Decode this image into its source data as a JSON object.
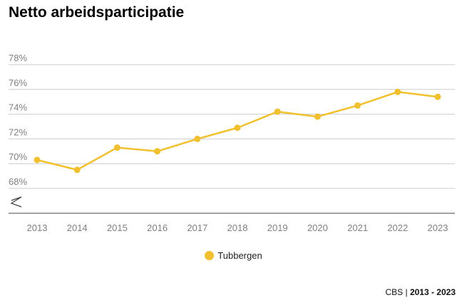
{
  "title": "Netto arbeidsparticipatie",
  "source": {
    "name": "CBS",
    "separator": "|",
    "period": "2013 - 2023"
  },
  "colors": {
    "series": "#f0c02e",
    "grid": "#cccccc",
    "axis": "#444444",
    "tick": "#808080"
  },
  "chart_data": {
    "type": "line",
    "title": "Netto arbeidsparticipatie",
    "x": [
      "2013",
      "2014",
      "2015",
      "2016",
      "2017",
      "2018",
      "2019",
      "2020",
      "2021",
      "2022",
      "2023"
    ],
    "series": [
      {
        "name": "Tubbergen",
        "values": [
          70.3,
          69.5,
          71.3,
          71.0,
          72.0,
          72.9,
          74.2,
          73.8,
          74.7,
          75.8,
          75.4
        ]
      }
    ],
    "ylim": [
      68,
      78
    ],
    "yticks": [
      78,
      76,
      74,
      72,
      70,
      68
    ],
    "ytick_labels": [
      "78%",
      "76%",
      "74%",
      "72%",
      "70%",
      "68%"
    ],
    "axis_break": true,
    "grid": true,
    "legend": "bottom"
  }
}
